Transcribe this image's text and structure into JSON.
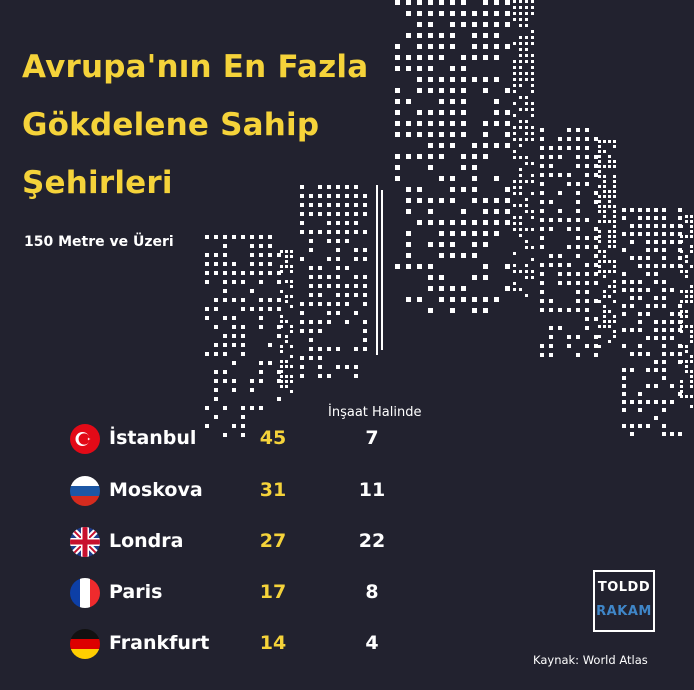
{
  "title_lines": [
    "Avrupa'nın En Fazla",
    "Gökdelene Sahip",
    "Şehirleri"
  ],
  "subtitle": "150 Metre ve Üzeri",
  "column_header": "İnşaat Halinde",
  "rows": [
    {
      "city": "İstanbul",
      "flag_icon": "turkey-flag-icon",
      "value": "45",
      "under_construction": "7"
    },
    {
      "city": "Moskova",
      "flag_icon": "russia-flag-icon",
      "value": "31",
      "under_construction": "11"
    },
    {
      "city": "Londra",
      "flag_icon": "uk-flag-icon",
      "value": "27",
      "under_construction": "22"
    },
    {
      "city": "Paris",
      "flag_icon": "france-flag-icon",
      "value": "17",
      "under_construction": "8"
    },
    {
      "city": "Frankfurt",
      "flag_icon": "germany-flag-icon",
      "value": "14",
      "under_construction": "4"
    }
  ],
  "logo": {
    "line1": "TOLDD",
    "line2": "RAKAM"
  },
  "source": "Kaynak: World Atlas",
  "colors": {
    "background": "#22222f",
    "accent_yellow": "#f5d33a",
    "text": "#ffffff",
    "logo_blue": "#3f86c8"
  },
  "chart_data": {
    "type": "table",
    "columns": [
      "",
      "",
      "İnşaat Halinde"
    ],
    "rows": [
      [
        "İstanbul",
        45,
        7
      ],
      [
        "Moskova",
        31,
        11
      ],
      [
        "Londra",
        27,
        22
      ],
      [
        "Paris",
        17,
        8
      ],
      [
        "Frankfurt",
        14,
        4
      ]
    ]
  }
}
